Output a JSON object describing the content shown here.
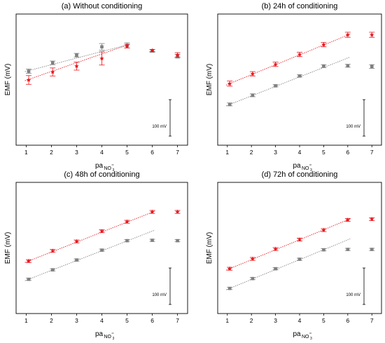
{
  "chart_data": [
    {
      "type": "scatter",
      "title": "(a) Without conditioning",
      "ylabel": "EMF (mV)",
      "xlabel": "pa",
      "xlabel_sub": "NO",
      "xlabel_subsub": "3",
      "x_ticks": [
        "1",
        "2",
        "3",
        "4",
        "5",
        "6",
        "7"
      ],
      "xlim": [
        0.6,
        7.4
      ],
      "ylim": [
        -160,
        200
      ],
      "scale_bar_label": "100 mV",
      "scale_bar_value": 100,
      "series": [
        {
          "color": "#7f7f7f",
          "marker": "square",
          "x": [
            1.1,
            2.05,
            3.0,
            4.0,
            5.0,
            6.0,
            7.0
          ],
          "y": [
            43,
            66,
            87,
            110,
            114,
            99,
            84
          ],
          "err": [
            6,
            5,
            5,
            9,
            7,
            4,
            5
          ],
          "fit_x": [
            0.95,
            5.1
          ],
          "fit_y": [
            42,
            117
          ]
        },
        {
          "color": "#e8151b",
          "marker": "star",
          "x": [
            1.1,
            2.05,
            3.0,
            4.0,
            5.0,
            6.0,
            7.0
          ],
          "y": [
            19,
            41,
            57,
            78,
            112,
            100,
            88
          ],
          "err": [
            12,
            11,
            11,
            18,
            5,
            3,
            6
          ],
          "fit_x": [
            0.95,
            5.1
          ],
          "fit_y": [
            17,
            117
          ]
        }
      ]
    },
    {
      "type": "scatter",
      "title": "(b) 24h of conditioning",
      "ylabel": "EMF (mV)",
      "xlabel": "pa",
      "xlabel_sub": "NO",
      "xlabel_subsub": "3",
      "x_ticks": [
        "1",
        "2",
        "3",
        "4",
        "5",
        "6",
        "7"
      ],
      "xlim": [
        0.6,
        7.4
      ],
      "ylim": [
        -160,
        200
      ],
      "scale_bar_label": "100 mV",
      "scale_bar_value": 100,
      "series": [
        {
          "color": "#7f7f7f",
          "marker": "square",
          "x": [
            1.1,
            2.05,
            3.0,
            4.0,
            5.0,
            6.0,
            7.0
          ],
          "y": [
            -48,
            -23,
            3,
            30,
            57,
            58,
            56
          ],
          "err": [
            4,
            4,
            3,
            3,
            4,
            4,
            5
          ],
          "fit_x": [
            0.95,
            6.1
          ],
          "fit_y": [
            -52,
            82
          ]
        },
        {
          "color": "#e8151b",
          "marker": "star",
          "x": [
            1.1,
            2.05,
            3.0,
            4.0,
            5.0,
            6.0,
            7.0
          ],
          "y": [
            9,
            36,
            62,
            89,
            116,
            143,
            143
          ],
          "err": [
            7,
            6,
            6,
            6,
            6,
            7,
            7
          ],
          "fit_x": [
            0.95,
            6.1
          ],
          "fit_y": [
            5,
            145
          ]
        }
      ]
    },
    {
      "type": "scatter",
      "title": "(c) 48h of conditioning",
      "ylabel": "EMF (mV)",
      "xlabel": "pa",
      "xlabel_sub": "NO",
      "xlabel_subsub": "3",
      "x_ticks": [
        "1",
        "2",
        "3",
        "4",
        "5",
        "6",
        "7"
      ],
      "xlim": [
        0.6,
        7.4
      ],
      "ylim": [
        -160,
        200
      ],
      "scale_bar_label": "100 mV",
      "scale_bar_value": 100,
      "series": [
        {
          "color": "#7f7f7f",
          "marker": "square",
          "x": [
            1.1,
            2.05,
            3.0,
            4.0,
            5.0,
            6.0,
            7.0
          ],
          "y": [
            -66,
            -40,
            -13,
            14,
            40,
            41,
            40
          ],
          "err": [
            3,
            3,
            3,
            3,
            3,
            3,
            3
          ],
          "fit_x": [
            0.95,
            6.1
          ],
          "fit_y": [
            -70,
            69
          ]
        },
        {
          "color": "#e8151b",
          "marker": "star",
          "x": [
            1.1,
            2.05,
            3.0,
            4.0,
            5.0,
            6.0,
            7.0
          ],
          "y": [
            -16,
            12,
            38,
            66,
            92,
            119,
            119
          ],
          "err": [
            4,
            4,
            4,
            4,
            4,
            4,
            4
          ],
          "fit_x": [
            0.95,
            6.1
          ],
          "fit_y": [
            -20,
            121
          ]
        }
      ]
    },
    {
      "type": "scatter",
      "title": "(d) 72h of conditioning",
      "ylabel": "EMF (mV)",
      "xlabel": "pa",
      "xlabel_sub": "NO",
      "xlabel_subsub": "3",
      "x_ticks": [
        "1",
        "2",
        "3",
        "4",
        "5",
        "6",
        "7"
      ],
      "xlim": [
        0.6,
        7.4
      ],
      "ylim": [
        -160,
        200
      ],
      "scale_bar_label": "100 mV",
      "scale_bar_value": 100,
      "series": [
        {
          "color": "#7f7f7f",
          "marker": "square",
          "x": [
            1.1,
            2.05,
            3.0,
            4.0,
            5.0,
            6.0,
            7.0
          ],
          "y": [
            -91,
            -64,
            -37,
            -11,
            15,
            16,
            16
          ],
          "err": [
            3,
            3,
            3,
            3,
            3,
            3,
            3
          ],
          "fit_x": [
            0.95,
            6.1
          ],
          "fit_y": [
            -95,
            45
          ]
        },
        {
          "color": "#e8151b",
          "marker": "star",
          "x": [
            1.1,
            2.05,
            3.0,
            4.0,
            5.0,
            6.0,
            7.0
          ],
          "y": [
            -37,
            -10,
            17,
            43,
            69,
            97,
            99
          ],
          "err": [
            4,
            4,
            4,
            4,
            4,
            4,
            4
          ],
          "fit_x": [
            0.95,
            6.1
          ],
          "fit_y": [
            -41,
            100
          ]
        }
      ]
    }
  ]
}
